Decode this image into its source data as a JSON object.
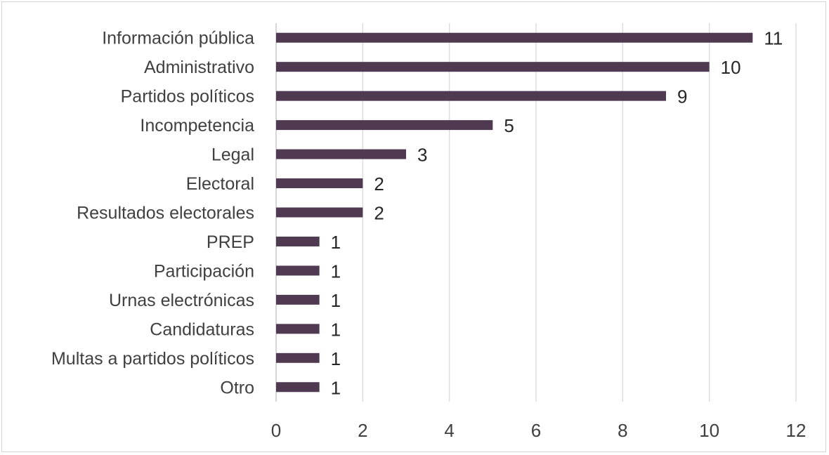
{
  "chart_data": {
    "type": "bar",
    "orientation": "horizontal",
    "categories": [
      "Información pública",
      "Administrativo",
      "Partidos políticos",
      "Incompetencia",
      "Legal",
      "Electoral",
      "Resultados electorales",
      "PREP ",
      "Participación",
      "Urnas electrónicas",
      "Candidaturas",
      "Multas a partidos políticos",
      "Otro"
    ],
    "values": [
      11,
      10,
      9,
      5,
      3,
      2,
      2,
      1,
      1,
      1,
      1,
      1,
      1
    ],
    "data_labels": [
      "11",
      "10",
      "9",
      "5",
      "3",
      "2",
      "2",
      "1",
      "1",
      "1",
      "1",
      "1",
      "1"
    ],
    "xlim": [
      0,
      12
    ],
    "xticks": [
      0,
      2,
      4,
      6,
      8,
      10,
      12
    ],
    "grid": true,
    "legend": "none",
    "bar_color": "#4f3a52",
    "title": "",
    "xlabel": "",
    "ylabel": ""
  }
}
